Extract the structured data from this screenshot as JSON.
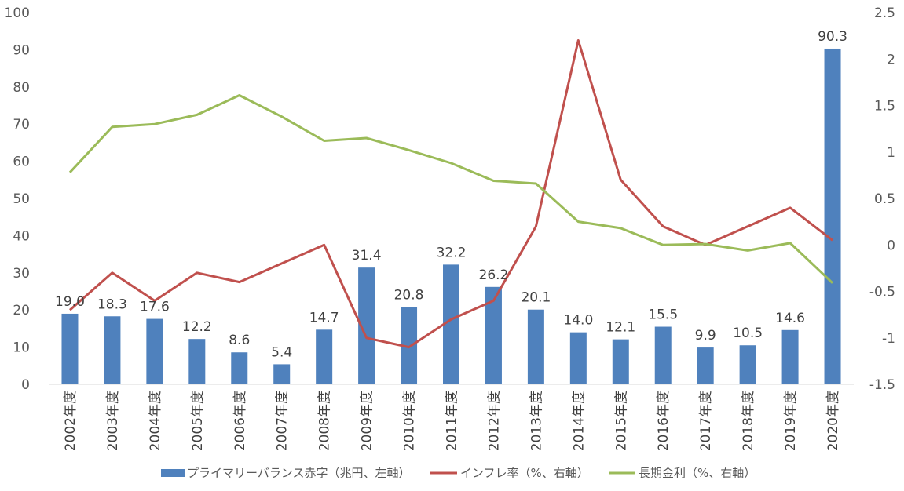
{
  "chart_data": {
    "type": "bar",
    "categories": [
      "2002年度",
      "2003年度",
      "2004年度",
      "2005年度",
      "2006年度",
      "2007年度",
      "2008年度",
      "2009年度",
      "2010年度",
      "2011年度",
      "2012年度",
      "2013年度",
      "2014年度",
      "2015年度",
      "2016年度",
      "2017年度",
      "2018年度",
      "2019年度",
      "2020年度"
    ],
    "series": [
      {
        "name": "プライマリーバランス赤字（兆円、左軸）",
        "kind": "bar",
        "axis": "left",
        "color": "#4F81BD",
        "values": [
          19.0,
          18.3,
          17.6,
          12.2,
          8.6,
          5.4,
          14.7,
          31.4,
          20.8,
          32.2,
          26.2,
          20.1,
          14.0,
          12.1,
          15.5,
          9.9,
          10.5,
          14.6,
          90.3
        ],
        "labels": [
          "19.0",
          "18.3",
          "17.6",
          "12.2",
          "8.6",
          "5.4",
          "14.7",
          "31.4",
          "20.8",
          "32.2",
          "26.2",
          "20.1",
          "14.0",
          "12.1",
          "15.5",
          "9.9",
          "10.5",
          "14.6",
          "90.3"
        ]
      },
      {
        "name": "インフレ率（%、右軸）",
        "kind": "line",
        "axis": "right",
        "color": "#C0504D",
        "values": [
          -0.7,
          -0.3,
          -0.6,
          -0.3,
          -0.4,
          -0.2,
          0.0,
          -1.0,
          -1.1,
          -0.8,
          -0.6,
          0.2,
          2.2,
          0.7,
          0.2,
          0.0,
          0.2,
          0.4,
          0.05
        ]
      },
      {
        "name": "長期金利（%、右軸）",
        "kind": "line",
        "axis": "right",
        "color": "#9BBB59",
        "values": [
          0.78,
          1.27,
          1.3,
          1.4,
          1.61,
          1.38,
          1.12,
          1.15,
          1.02,
          0.88,
          0.69,
          0.66,
          0.25,
          0.18,
          0.0,
          0.01,
          -0.06,
          0.02,
          -0.41
        ]
      }
    ],
    "y_left": {
      "ylim": [
        0,
        100
      ],
      "ticks": [
        "0",
        "10",
        "20",
        "30",
        "40",
        "50",
        "60",
        "70",
        "80",
        "90",
        "100"
      ]
    },
    "y_right": {
      "ylim": [
        -1.5,
        2.5
      ],
      "ticks": [
        "-1.5",
        "-1",
        "-0.5",
        "0",
        "0.5",
        "1",
        "1.5",
        "2",
        "2.5"
      ]
    },
    "grid": false,
    "legend_position": "bottom"
  }
}
